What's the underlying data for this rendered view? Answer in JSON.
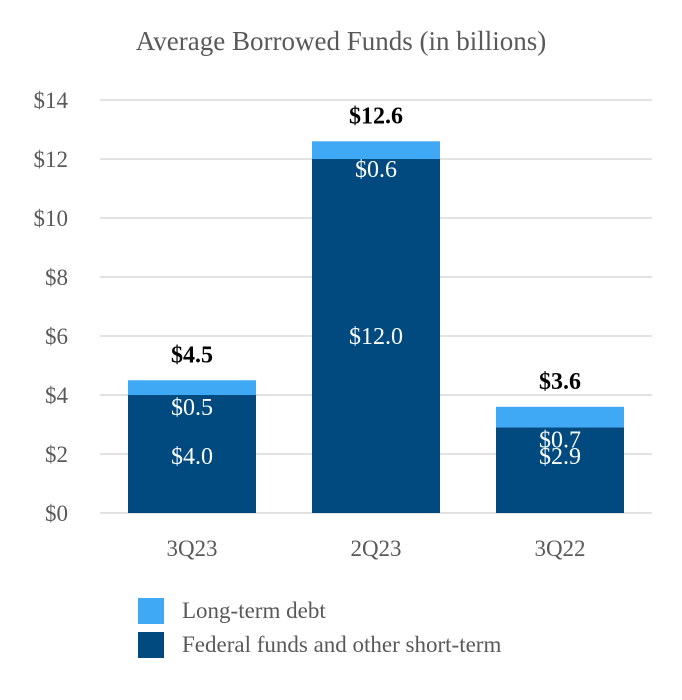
{
  "chart_data": {
    "type": "bar",
    "stacked": true,
    "title": "Average Borrowed Funds (in billions)",
    "categories": [
      "3Q23",
      "2Q23",
      "3Q22"
    ],
    "y_tick_labels": [
      "$0",
      "$2",
      "$4",
      "$6",
      "$8",
      "$10",
      "$12",
      "$14"
    ],
    "ylim": [
      0,
      14
    ],
    "grid": true,
    "legend_position": "bottom",
    "series": [
      {
        "name": "Federal funds and other short-term",
        "values": [
          4.0,
          12.0,
          2.9
        ],
        "labels": [
          "$4.0",
          "$12.0",
          "$2.9"
        ],
        "color": "#004A80"
      },
      {
        "name": "Long-term debt",
        "values": [
          0.5,
          0.6,
          0.7
        ],
        "labels": [
          "$0.5",
          "$0.6",
          "$0.7"
        ],
        "color": "#3FA9F5"
      }
    ],
    "totals": [
      "$4.5",
      "$12.6",
      "$3.6"
    ]
  },
  "legend": {
    "items": [
      {
        "label": "Long-term debt",
        "color": "#3FA9F5"
      },
      {
        "label": "Federal funds and other short-term",
        "color": "#004A80"
      }
    ]
  }
}
